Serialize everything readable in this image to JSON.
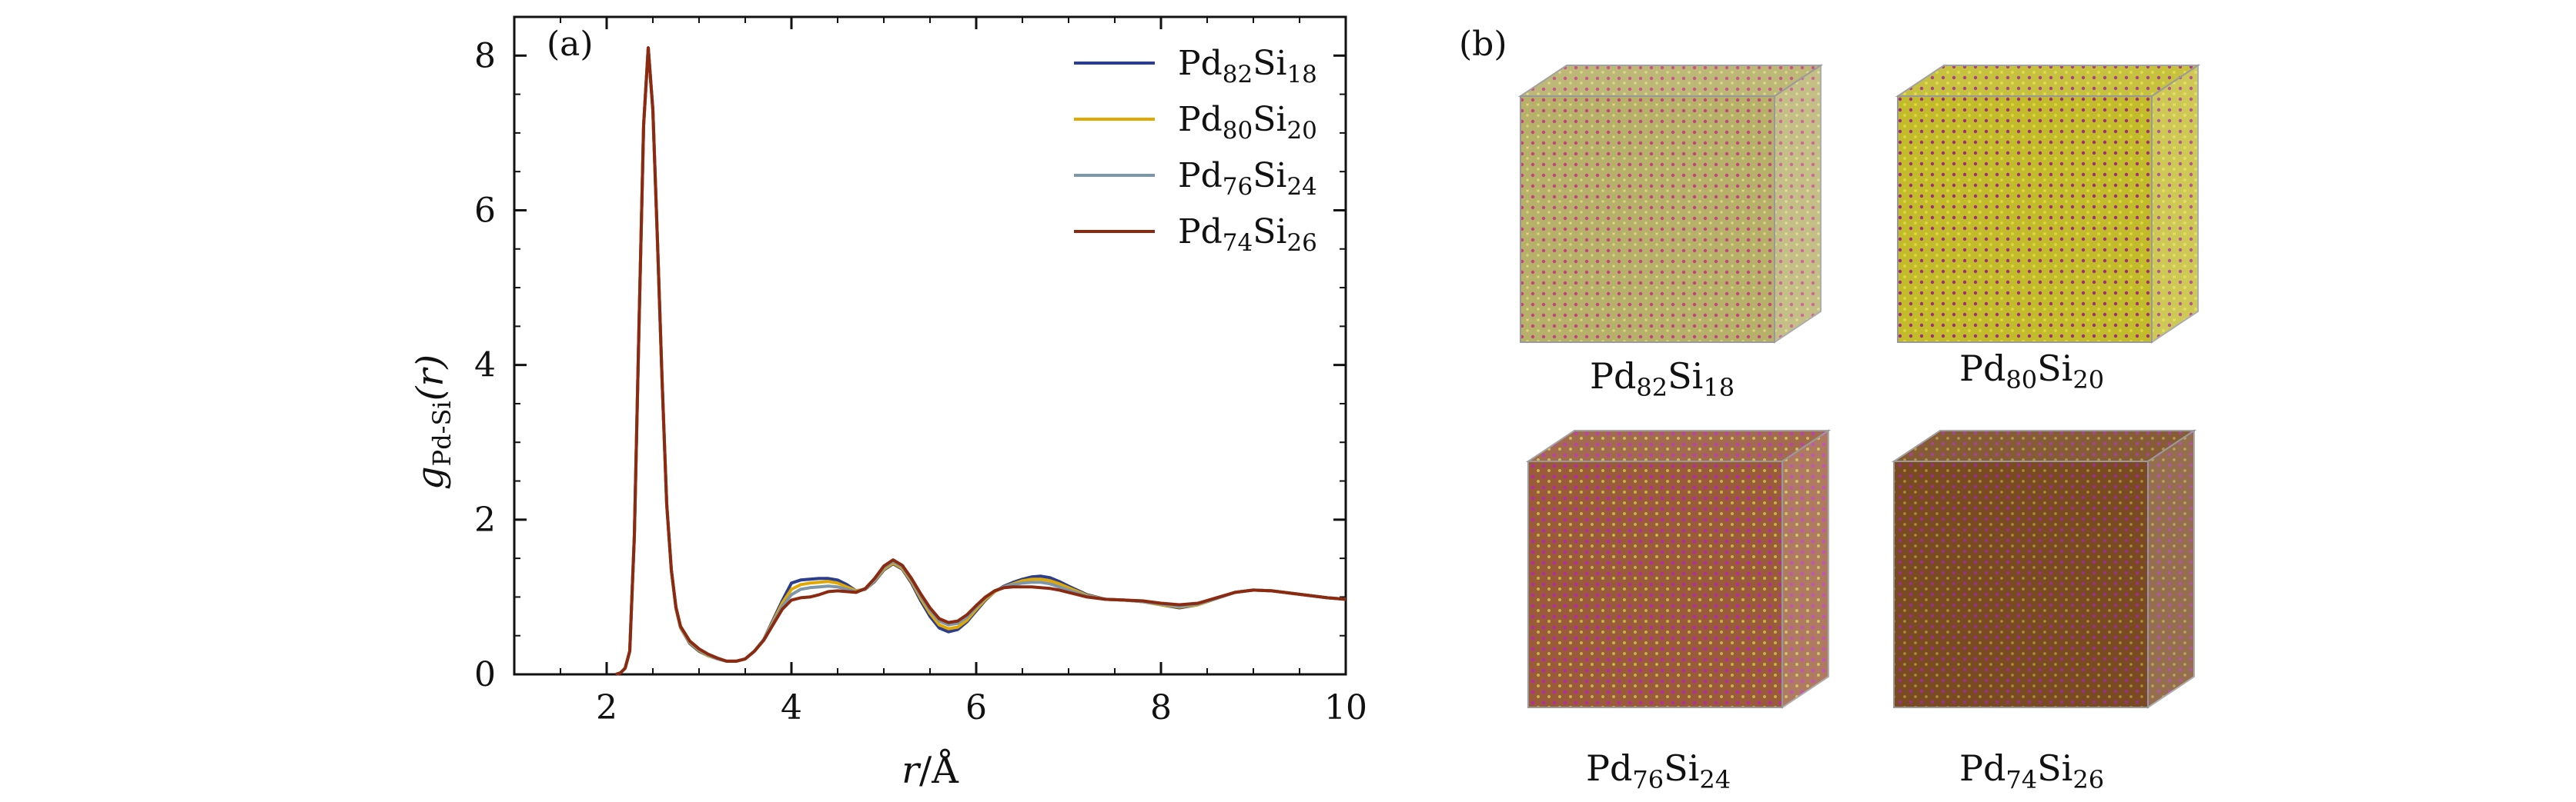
{
  "panel_a_label": "(a)",
  "panel_b_label": "(b)",
  "chart_data": {
    "type": "line",
    "title": "",
    "xlabel": "r/Å",
    "ylabel": "g_Pd-Si(r)",
    "xlim": [
      1,
      10
    ],
    "ylim": [
      0,
      8.5
    ],
    "xticks": [
      "2",
      "4",
      "6",
      "8",
      "10"
    ],
    "yticks": [
      "0",
      "2",
      "4",
      "6",
      "8"
    ],
    "grid": false,
    "legend_position": "top-right",
    "series": [
      {
        "name": "Pd82Si18",
        "color": "#2b3d8f",
        "points": [
          [
            2.1,
            0
          ],
          [
            2.15,
            0.02
          ],
          [
            2.2,
            0.08
          ],
          [
            2.25,
            0.3
          ],
          [
            2.3,
            1.8
          ],
          [
            2.35,
            4.5
          ],
          [
            2.4,
            7.1
          ],
          [
            2.45,
            8.1
          ],
          [
            2.5,
            7.3
          ],
          [
            2.55,
            5.6
          ],
          [
            2.6,
            3.8
          ],
          [
            2.65,
            2.2
          ],
          [
            2.7,
            1.35
          ],
          [
            2.75,
            0.85
          ],
          [
            2.8,
            0.6
          ],
          [
            2.9,
            0.4
          ],
          [
            3.0,
            0.3
          ],
          [
            3.1,
            0.24
          ],
          [
            3.2,
            0.2
          ],
          [
            3.3,
            0.17
          ],
          [
            3.4,
            0.17
          ],
          [
            3.5,
            0.2
          ],
          [
            3.6,
            0.3
          ],
          [
            3.7,
            0.45
          ],
          [
            3.8,
            0.7
          ],
          [
            3.9,
            0.95
          ],
          [
            4.0,
            1.18
          ],
          [
            4.1,
            1.22
          ],
          [
            4.2,
            1.23
          ],
          [
            4.3,
            1.24
          ],
          [
            4.4,
            1.24
          ],
          [
            4.5,
            1.22
          ],
          [
            4.6,
            1.16
          ],
          [
            4.7,
            1.08
          ],
          [
            4.8,
            1.1
          ],
          [
            4.9,
            1.2
          ],
          [
            5.0,
            1.35
          ],
          [
            5.1,
            1.43
          ],
          [
            5.2,
            1.36
          ],
          [
            5.3,
            1.18
          ],
          [
            5.4,
            0.95
          ],
          [
            5.5,
            0.75
          ],
          [
            5.6,
            0.6
          ],
          [
            5.7,
            0.55
          ],
          [
            5.8,
            0.58
          ],
          [
            5.9,
            0.68
          ],
          [
            6.0,
            0.82
          ],
          [
            6.1,
            0.96
          ],
          [
            6.2,
            1.07
          ],
          [
            6.3,
            1.14
          ],
          [
            6.4,
            1.19
          ],
          [
            6.5,
            1.23
          ],
          [
            6.6,
            1.26
          ],
          [
            6.7,
            1.27
          ],
          [
            6.8,
            1.25
          ],
          [
            6.9,
            1.2
          ],
          [
            7.0,
            1.14
          ],
          [
            7.2,
            1.03
          ],
          [
            7.4,
            0.97
          ],
          [
            7.6,
            0.96
          ],
          [
            7.8,
            0.94
          ],
          [
            8.0,
            0.9
          ],
          [
            8.2,
            0.86
          ],
          [
            8.4,
            0.9
          ],
          [
            8.6,
            0.98
          ],
          [
            8.8,
            1.06
          ],
          [
            9.0,
            1.09
          ],
          [
            9.2,
            1.08
          ],
          [
            9.4,
            1.05
          ],
          [
            9.6,
            1.02
          ],
          [
            9.8,
            0.99
          ],
          [
            10.0,
            0.97
          ]
        ]
      },
      {
        "name": "Pd80Si20",
        "color": "#e0a800",
        "points": [
          [
            2.1,
            0
          ],
          [
            2.15,
            0.02
          ],
          [
            2.2,
            0.08
          ],
          [
            2.25,
            0.3
          ],
          [
            2.3,
            1.8
          ],
          [
            2.35,
            4.5
          ],
          [
            2.4,
            7.1
          ],
          [
            2.45,
            8.1
          ],
          [
            2.5,
            7.3
          ],
          [
            2.55,
            5.6
          ],
          [
            2.6,
            3.8
          ],
          [
            2.65,
            2.2
          ],
          [
            2.7,
            1.35
          ],
          [
            2.75,
            0.85
          ],
          [
            2.8,
            0.6
          ],
          [
            2.9,
            0.41
          ],
          [
            3.0,
            0.31
          ],
          [
            3.1,
            0.24
          ],
          [
            3.2,
            0.2
          ],
          [
            3.3,
            0.17
          ],
          [
            3.4,
            0.17
          ],
          [
            3.5,
            0.2
          ],
          [
            3.6,
            0.3
          ],
          [
            3.7,
            0.45
          ],
          [
            3.8,
            0.68
          ],
          [
            3.9,
            0.92
          ],
          [
            4.0,
            1.1
          ],
          [
            4.1,
            1.16
          ],
          [
            4.2,
            1.18
          ],
          [
            4.3,
            1.19
          ],
          [
            4.4,
            1.2
          ],
          [
            4.5,
            1.18
          ],
          [
            4.6,
            1.13
          ],
          [
            4.7,
            1.08
          ],
          [
            4.8,
            1.1
          ],
          [
            4.9,
            1.21
          ],
          [
            5.0,
            1.36
          ],
          [
            5.1,
            1.44
          ],
          [
            5.2,
            1.37
          ],
          [
            5.3,
            1.2
          ],
          [
            5.4,
            0.98
          ],
          [
            5.5,
            0.79
          ],
          [
            5.6,
            0.64
          ],
          [
            5.7,
            0.59
          ],
          [
            5.8,
            0.61
          ],
          [
            5.9,
            0.7
          ],
          [
            6.0,
            0.84
          ],
          [
            6.1,
            0.97
          ],
          [
            6.2,
            1.07
          ],
          [
            6.3,
            1.13
          ],
          [
            6.4,
            1.17
          ],
          [
            6.5,
            1.21
          ],
          [
            6.6,
            1.23
          ],
          [
            6.7,
            1.23
          ],
          [
            6.8,
            1.21
          ],
          [
            6.9,
            1.17
          ],
          [
            7.0,
            1.12
          ],
          [
            7.2,
            1.02
          ],
          [
            7.4,
            0.97
          ],
          [
            7.6,
            0.96
          ],
          [
            7.8,
            0.94
          ],
          [
            8.0,
            0.9
          ],
          [
            8.2,
            0.87
          ],
          [
            8.4,
            0.9
          ],
          [
            8.6,
            0.98
          ],
          [
            8.8,
            1.06
          ],
          [
            9.0,
            1.09
          ],
          [
            9.2,
            1.08
          ],
          [
            9.4,
            1.05
          ],
          [
            9.6,
            1.02
          ],
          [
            9.8,
            0.99
          ],
          [
            10.0,
            0.97
          ]
        ]
      },
      {
        "name": "Pd76Si24",
        "color": "#7d97a8",
        "points": [
          [
            2.1,
            0
          ],
          [
            2.15,
            0.02
          ],
          [
            2.2,
            0.08
          ],
          [
            2.25,
            0.3
          ],
          [
            2.3,
            1.8
          ],
          [
            2.35,
            4.5
          ],
          [
            2.4,
            7.1
          ],
          [
            2.45,
            8.1
          ],
          [
            2.5,
            7.3
          ],
          [
            2.55,
            5.6
          ],
          [
            2.6,
            3.8
          ],
          [
            2.65,
            2.2
          ],
          [
            2.7,
            1.35
          ],
          [
            2.75,
            0.86
          ],
          [
            2.8,
            0.61
          ],
          [
            2.9,
            0.42
          ],
          [
            3.0,
            0.32
          ],
          [
            3.1,
            0.25
          ],
          [
            3.2,
            0.2
          ],
          [
            3.3,
            0.17
          ],
          [
            3.4,
            0.17
          ],
          [
            3.5,
            0.2
          ],
          [
            3.6,
            0.3
          ],
          [
            3.7,
            0.45
          ],
          [
            3.8,
            0.66
          ],
          [
            3.9,
            0.88
          ],
          [
            4.0,
            1.03
          ],
          [
            4.1,
            1.1
          ],
          [
            4.2,
            1.12
          ],
          [
            4.3,
            1.13
          ],
          [
            4.4,
            1.14
          ],
          [
            4.5,
            1.13
          ],
          [
            4.6,
            1.1
          ],
          [
            4.7,
            1.07
          ],
          [
            4.8,
            1.1
          ],
          [
            4.9,
            1.22
          ],
          [
            5.0,
            1.38
          ],
          [
            5.1,
            1.46
          ],
          [
            5.2,
            1.39
          ],
          [
            5.3,
            1.22
          ],
          [
            5.4,
            1.01
          ],
          [
            5.5,
            0.83
          ],
          [
            5.6,
            0.69
          ],
          [
            5.7,
            0.64
          ],
          [
            5.8,
            0.66
          ],
          [
            5.9,
            0.74
          ],
          [
            6.0,
            0.87
          ],
          [
            6.1,
            0.99
          ],
          [
            6.2,
            1.08
          ],
          [
            6.3,
            1.13
          ],
          [
            6.4,
            1.16
          ],
          [
            6.5,
            1.18
          ],
          [
            6.6,
            1.19
          ],
          [
            6.7,
            1.19
          ],
          [
            6.8,
            1.17
          ],
          [
            6.9,
            1.13
          ],
          [
            7.0,
            1.09
          ],
          [
            7.2,
            1.01
          ],
          [
            7.4,
            0.97
          ],
          [
            7.6,
            0.96
          ],
          [
            7.8,
            0.94
          ],
          [
            8.0,
            0.91
          ],
          [
            8.2,
            0.88
          ],
          [
            8.4,
            0.91
          ],
          [
            8.6,
            0.98
          ],
          [
            8.8,
            1.06
          ],
          [
            9.0,
            1.09
          ],
          [
            9.2,
            1.08
          ],
          [
            9.4,
            1.05
          ],
          [
            9.6,
            1.02
          ],
          [
            9.8,
            0.99
          ],
          [
            10.0,
            0.97
          ]
        ]
      },
      {
        "name": "Pd74Si26",
        "color": "#8b2a10",
        "points": [
          [
            2.1,
            0
          ],
          [
            2.15,
            0.02
          ],
          [
            2.2,
            0.08
          ],
          [
            2.25,
            0.3
          ],
          [
            2.3,
            1.8
          ],
          [
            2.35,
            4.5
          ],
          [
            2.4,
            7.1
          ],
          [
            2.45,
            8.1
          ],
          [
            2.5,
            7.3
          ],
          [
            2.55,
            5.6
          ],
          [
            2.6,
            3.8
          ],
          [
            2.65,
            2.2
          ],
          [
            2.7,
            1.35
          ],
          [
            2.75,
            0.87
          ],
          [
            2.8,
            0.62
          ],
          [
            2.9,
            0.43
          ],
          [
            3.0,
            0.33
          ],
          [
            3.1,
            0.26
          ],
          [
            3.2,
            0.21
          ],
          [
            3.3,
            0.17
          ],
          [
            3.4,
            0.17
          ],
          [
            3.5,
            0.2
          ],
          [
            3.6,
            0.3
          ],
          [
            3.7,
            0.44
          ],
          [
            3.8,
            0.64
          ],
          [
            3.9,
            0.84
          ],
          [
            4.0,
            0.96
          ],
          [
            4.1,
            0.99
          ],
          [
            4.2,
            1.0
          ],
          [
            4.3,
            1.03
          ],
          [
            4.4,
            1.07
          ],
          [
            4.5,
            1.08
          ],
          [
            4.6,
            1.07
          ],
          [
            4.7,
            1.06
          ],
          [
            4.8,
            1.11
          ],
          [
            4.9,
            1.24
          ],
          [
            5.0,
            1.4
          ],
          [
            5.1,
            1.48
          ],
          [
            5.2,
            1.41
          ],
          [
            5.3,
            1.24
          ],
          [
            5.4,
            1.04
          ],
          [
            5.5,
            0.86
          ],
          [
            5.6,
            0.72
          ],
          [
            5.7,
            0.67
          ],
          [
            5.8,
            0.69
          ],
          [
            5.9,
            0.77
          ],
          [
            6.0,
            0.89
          ],
          [
            6.1,
            1.0
          ],
          [
            6.2,
            1.08
          ],
          [
            6.3,
            1.12
          ],
          [
            6.4,
            1.13
          ],
          [
            6.5,
            1.13
          ],
          [
            6.6,
            1.13
          ],
          [
            6.7,
            1.12
          ],
          [
            6.8,
            1.11
          ],
          [
            6.9,
            1.09
          ],
          [
            7.0,
            1.06
          ],
          [
            7.2,
            1.0
          ],
          [
            7.4,
            0.97
          ],
          [
            7.6,
            0.96
          ],
          [
            7.8,
            0.95
          ],
          [
            8.0,
            0.92
          ],
          [
            8.2,
            0.9
          ],
          [
            8.4,
            0.92
          ],
          [
            8.6,
            0.99
          ],
          [
            8.8,
            1.06
          ],
          [
            9.0,
            1.09
          ],
          [
            9.2,
            1.08
          ],
          [
            9.4,
            1.05
          ],
          [
            9.6,
            1.02
          ],
          [
            9.8,
            0.99
          ],
          [
            10.0,
            0.97
          ]
        ]
      }
    ]
  },
  "panel_b": {
    "cubes": [
      {
        "caption": "Pd82Si18",
        "face_color": "#b6b06a",
        "dot_color": "#c4427e"
      },
      {
        "caption": "Pd80Si20",
        "face_color": "#c2bb2c",
        "dot_color": "#a32c7a"
      },
      {
        "caption": "Pd76Si24",
        "face_color": "#9a5b3a",
        "dot_color": "#b42e9e"
      },
      {
        "caption": "Pd74Si26",
        "face_color": "#7a4b22",
        "dot_color": "#9c2f8a"
      }
    ]
  }
}
